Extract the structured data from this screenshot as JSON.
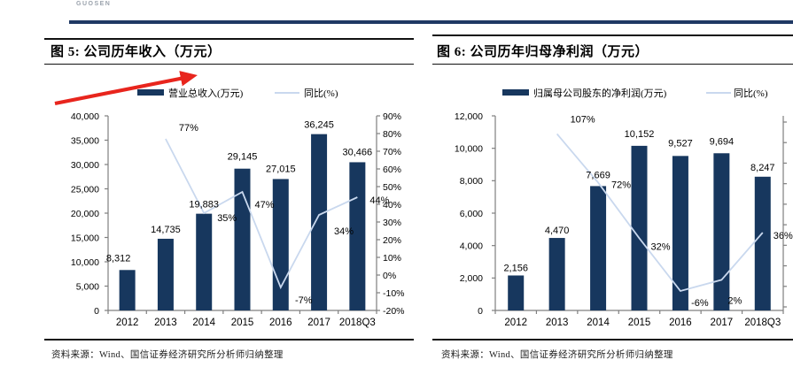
{
  "page": {
    "logo_text": "GUOSEN",
    "top_rule_color": "#1F3864",
    "annotation_arrow": {
      "name": "red-arrow",
      "color": "#E8251D"
    }
  },
  "chart_data": [
    {
      "type": "bar",
      "title": "图 5: 公司历年收入（万元）",
      "categories": [
        "2012",
        "2013",
        "2014",
        "2015",
        "2016",
        "2017",
        "2018Q3"
      ],
      "series": [
        {
          "name": "营业总收入(万元)",
          "kind": "bar",
          "axis": "left",
          "values": [
            8312,
            14735,
            19883,
            29145,
            27015,
            36245,
            30466
          ],
          "labels": [
            "8,312",
            "14,735",
            "19,883",
            "29,145",
            "27,015",
            "36,245",
            "30,466"
          ]
        },
        {
          "name": "同比(%)",
          "kind": "line",
          "axis": "right",
          "values": [
            null,
            77,
            35,
            47,
            -7,
            34,
            44
          ],
          "labels": [
            "",
            "77%",
            "35%",
            "47%",
            "-7%",
            "34%",
            "44%"
          ]
        }
      ],
      "left_axis": {
        "min": 0,
        "max": 40000,
        "ticks": [
          "40,000",
          "35,000",
          "30,000",
          "25,000",
          "20,000",
          "15,000",
          "10,000",
          "5,000",
          "0"
        ]
      },
      "right_axis": {
        "min": -20,
        "max": 90,
        "ticks": [
          "90%",
          "80%",
          "70%",
          "60%",
          "50%",
          "40%",
          "30%",
          "20%",
          "10%",
          "0%",
          "-10%",
          "-20%"
        ]
      },
      "colors": {
        "bar": "#17375E",
        "line": "#C9D8EE"
      },
      "source": "资料来源：Wind、国信证券经济研究所分析师归纳整理"
    },
    {
      "type": "bar",
      "title": "图 6: 公司历年归母净利润（万元）",
      "categories": [
        "2012",
        "2013",
        "2014",
        "2015",
        "2016",
        "2017",
        "2018Q3"
      ],
      "series": [
        {
          "name": "归属母公司股东的净利润(万元)",
          "kind": "bar",
          "axis": "left",
          "values": [
            2156,
            4470,
            7669,
            10152,
            9527,
            9694,
            8247
          ],
          "labels": [
            "2,156",
            "4,470",
            "7,669",
            "10,152",
            "9,527",
            "9,694",
            "8,247"
          ]
        },
        {
          "name": "同比(%)",
          "kind": "line",
          "axis": "right",
          "values": [
            null,
            107,
            72,
            32,
            -6,
            2,
            36
          ],
          "labels": [
            "",
            "107%",
            "72%",
            "32%",
            "-6%",
            "2%",
            "36%"
          ]
        }
      ],
      "left_axis": {
        "min": 0,
        "max": 12000,
        "ticks": [
          "12,000",
          "10,000",
          "8,000",
          "6,000",
          "4,000",
          "2,000",
          "0"
        ]
      },
      "right_axis": {
        "min": -20,
        "max": 120,
        "ticks": []
      },
      "colors": {
        "bar": "#17375E",
        "line": "#C9D8EE"
      },
      "source": "资料来源：Wind、国信证券经济研究所分析师归纳整理"
    }
  ]
}
